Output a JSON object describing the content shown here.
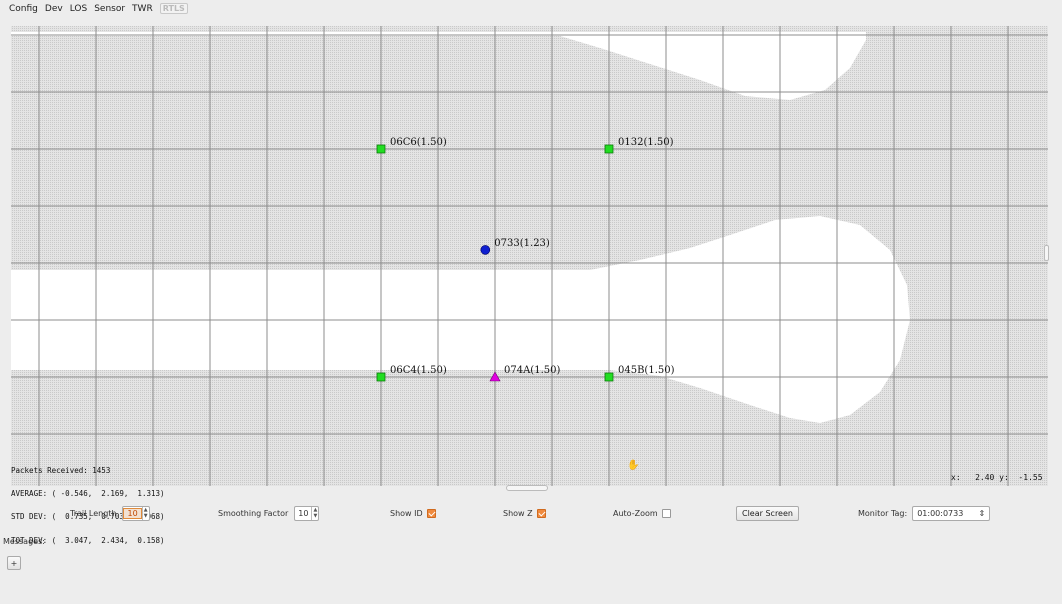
{
  "menu": {
    "items": [
      "Config",
      "Dev",
      "LOS",
      "Sensor",
      "TWR"
    ],
    "disabled_item": "RTLS"
  },
  "colors": {
    "grid_background": "#dcdcdc",
    "grid_line": "#8c8c8c",
    "anchor_fill": "#22dd22",
    "tag_fill": "#1020d0",
    "trigger_fill": "#e000e0"
  },
  "anchors": [
    {
      "label": "06C6(1.50)",
      "x": -1.0,
      "y": 1.0
    },
    {
      "label": "0132(1.50)",
      "x": 1.0,
      "y": 1.0
    },
    {
      "label": "06C4(1.50)",
      "x": -1.0,
      "y": -1.0
    },
    {
      "label": "045B(1.50)",
      "x": 1.0,
      "y": -1.0
    }
  ],
  "tags": [
    {
      "label": "0733(1.23)",
      "x": -0.085,
      "y": 0.115,
      "icon": "circle-icon"
    }
  ],
  "markers": [
    {
      "label": "074A(1.50)",
      "x": 0.0,
      "y": -1.0,
      "icon": "triangle-icon"
    }
  ],
  "stats": {
    "line1": "Packets Received: 1453",
    "line2": "AVERAGE: ( -0.546,  2.169,  1.313)",
    "line3": "STD DEV: (  0.735,  0.703,  0.068)",
    "line4": "TOT DEV: (  3.047,  2.434,  0.158)"
  },
  "coord_readout": "x:   2.40 y:  -1.55",
  "controls": {
    "trail_length_label": "Trail Length",
    "trail_length_value": "10",
    "smoothing_label": "Smoothing Factor",
    "smoothing_value": "10",
    "show_id_label": "Show ID",
    "show_id_checked": true,
    "show_z_label": "Show Z",
    "show_z_checked": true,
    "auto_zoom_label": "Auto-Zoom",
    "auto_zoom_checked": false,
    "clear_screen_label": "Clear Screen",
    "monitor_tag_label": "Monitor Tag:",
    "monitor_tag_value": "01:00:0733"
  },
  "messages": {
    "label": "Messages:",
    "add_label": "+"
  }
}
